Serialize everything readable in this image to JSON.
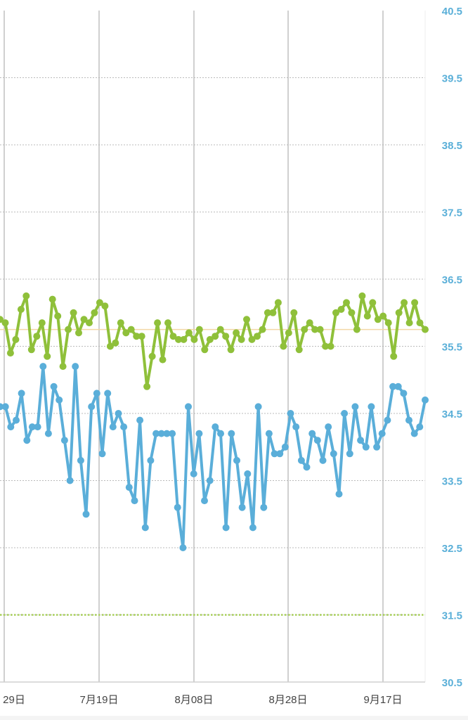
{
  "chart_data": {
    "type": "line",
    "x_tick_labels": [
      "29日",
      "7月19日",
      "8月08日",
      "8月28日",
      "9月17日"
    ],
    "y_tick_labels": [
      "40.5",
      "39.5",
      "38.5",
      "37.5",
      "36.5",
      "35.5",
      "34.5",
      "33.5",
      "32.5",
      "31.5",
      "30.5"
    ],
    "ylim": [
      30.5,
      40.5
    ],
    "grid": true,
    "reference_lines": [
      {
        "value": 35.75,
        "style": "solid",
        "color": "#f2d7a6"
      },
      {
        "value": 31.5,
        "style": "dotted",
        "color": "#a8cf5a"
      }
    ],
    "colors": {
      "axis_label": "#5aafd8",
      "x_label": "#444444",
      "grid": "#bbbbbb",
      "vertical_grid": "#b0b0b0"
    },
    "series": [
      {
        "color": "#8fc03a",
        "values": [
          35.9,
          35.85,
          35.4,
          35.6,
          36.05,
          36.25,
          35.45,
          35.65,
          35.85,
          35.35,
          36.2,
          35.95,
          35.2,
          35.75,
          36.0,
          35.7,
          35.9,
          35.85,
          36.0,
          36.15,
          36.1,
          35.5,
          35.55,
          35.85,
          35.7,
          35.75,
          35.65,
          35.65,
          34.9,
          35.35,
          35.85,
          35.3,
          35.85,
          35.65,
          35.6,
          35.6,
          35.7,
          35.6,
          35.75,
          35.45,
          35.6,
          35.65,
          35.75,
          35.65,
          35.45,
          35.7,
          35.6,
          35.9,
          35.6,
          35.65,
          35.75,
          36.0,
          36.0,
          36.15,
          35.5,
          35.7,
          36.0,
          35.45,
          35.75,
          35.85,
          35.75,
          35.75,
          35.5,
          35.5,
          36.0,
          36.05,
          36.15,
          36.0,
          35.75,
          36.25,
          35.95,
          36.15,
          35.9,
          35.95,
          35.85,
          35.35,
          36.0,
          36.15,
          35.85,
          36.15,
          35.85,
          35.75
        ]
      },
      {
        "color": "#5aaed9",
        "values": [
          34.6,
          34.6,
          34.3,
          34.4,
          34.8,
          34.1,
          34.3,
          34.3,
          35.2,
          34.2,
          34.9,
          34.7,
          34.1,
          33.5,
          35.2,
          33.8,
          33.0,
          34.6,
          34.8,
          33.9,
          34.8,
          34.3,
          34.5,
          34.3,
          33.4,
          33.2,
          34.4,
          32.8,
          33.8,
          34.2,
          34.2,
          34.2,
          34.2,
          33.1,
          32.5,
          34.6,
          33.6,
          34.2,
          33.2,
          33.5,
          34.3,
          34.2,
          32.8,
          34.2,
          33.8,
          33.1,
          33.6,
          32.8,
          34.6,
          33.1,
          34.2,
          33.9,
          33.9,
          34.0,
          34.5,
          34.3,
          33.8,
          33.7,
          34.2,
          34.1,
          33.8,
          34.3,
          33.9,
          33.3,
          34.5,
          33.9,
          34.6,
          34.1,
          34.0,
          34.6,
          34.0,
          34.2,
          34.4,
          34.9,
          34.9,
          34.8,
          34.4,
          34.2,
          34.3,
          34.7
        ]
      }
    ]
  }
}
